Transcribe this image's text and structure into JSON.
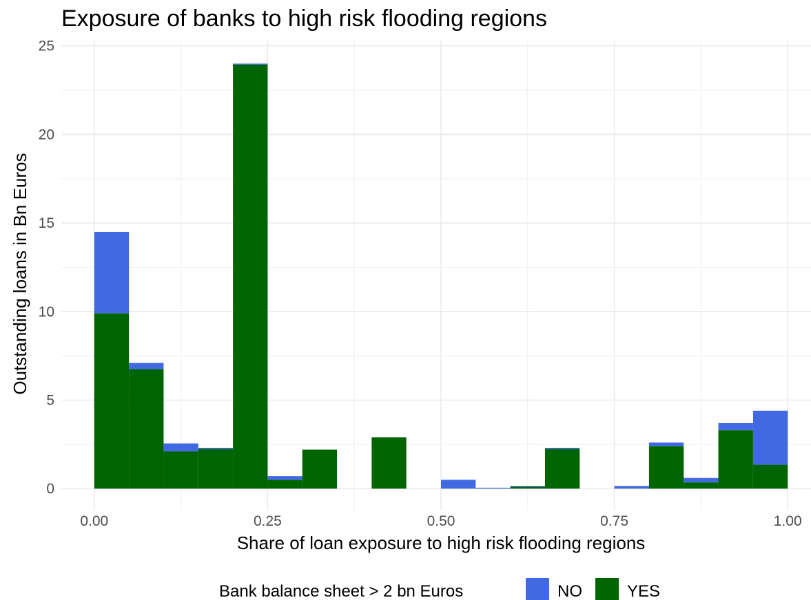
{
  "chart_data": {
    "type": "bar",
    "stacked": true,
    "title": "Exposure of banks to high risk flooding regions",
    "xlabel": "Share of loan exposure to high risk flooding regions",
    "ylabel": "Outstanding loans in Bn Euros",
    "xlim": [
      -0.0475,
      1.0475
    ],
    "ylim": [
      -1.2,
      25.3
    ],
    "x_ticks": [
      0.0,
      0.25,
      0.5,
      0.75,
      1.0
    ],
    "x_tick_labels": [
      "0.00",
      "0.25",
      "0.50",
      "0.75",
      "1.00"
    ],
    "y_ticks": [
      0,
      5,
      10,
      15,
      20,
      25
    ],
    "y_tick_labels": [
      "0",
      "5",
      "10",
      "15",
      "20",
      "25"
    ],
    "grid": true,
    "legend_position": "bottom",
    "legend_title": "Bank balance sheet > 2 bn Euros",
    "bin_width": 0.05,
    "bin_starts": [
      0.0,
      0.05,
      0.1,
      0.15,
      0.2,
      0.25,
      0.3,
      0.35,
      0.4,
      0.45,
      0.5,
      0.55,
      0.6,
      0.65,
      0.7,
      0.75,
      0.8,
      0.85,
      0.9,
      0.95
    ],
    "series": [
      {
        "name": "YES",
        "color": "#006400",
        "values": [
          9.9,
          6.75,
          2.1,
          2.25,
          23.95,
          0.5,
          2.2,
          0,
          2.9,
          0,
          0,
          0,
          0.1,
          2.25,
          0,
          0,
          2.4,
          0.35,
          3.3,
          1.35
        ]
      },
      {
        "name": "NO",
        "color": "#4169E1",
        "values": [
          4.6,
          0.35,
          0.45,
          0.05,
          0.05,
          0.2,
          0,
          0,
          0,
          0,
          0.5,
          0.05,
          0.05,
          0.05,
          0,
          0.15,
          0.2,
          0.25,
          0.4,
          3.05
        ]
      }
    ]
  }
}
